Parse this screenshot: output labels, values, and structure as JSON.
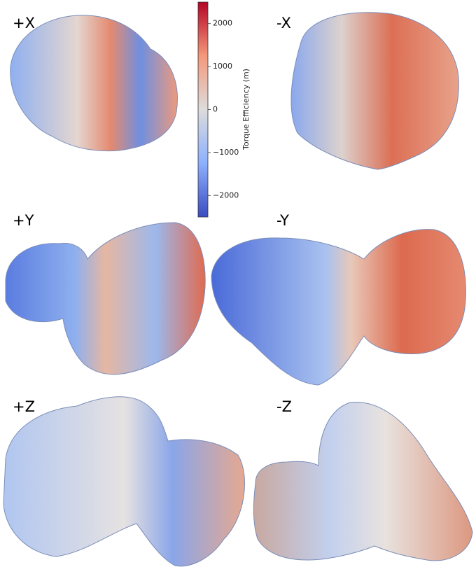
{
  "panels": [
    {
      "label": "+X"
    },
    {
      "label": "-X"
    },
    {
      "label": "+Y"
    },
    {
      "label": "-Y"
    },
    {
      "label": "+Z"
    },
    {
      "label": "-Z"
    }
  ],
  "colorbar": {
    "label": "Torque Efficiency (m)",
    "range": [
      -2500,
      2500
    ],
    "ticks": [
      {
        "value": -2000,
        "label": "−2000"
      },
      {
        "value": -1000,
        "label": "−1000"
      },
      0,
      1000,
      2000
    ]
  }
}
